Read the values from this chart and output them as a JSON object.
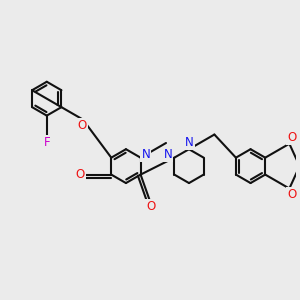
{
  "bg": "#EBEBEB",
  "bc": "#111111",
  "nc": "#1515EE",
  "oc": "#EE1515",
  "fc": "#CC00CC",
  "lw": 1.5,
  "lw_thin": 1.5,
  "fs": 8.5,
  "figsize": [
    3.0,
    3.0
  ],
  "dpi": 100,
  "xlim": [
    0.0,
    10.0
  ],
  "ylim": [
    -1.0,
    6.5
  ]
}
